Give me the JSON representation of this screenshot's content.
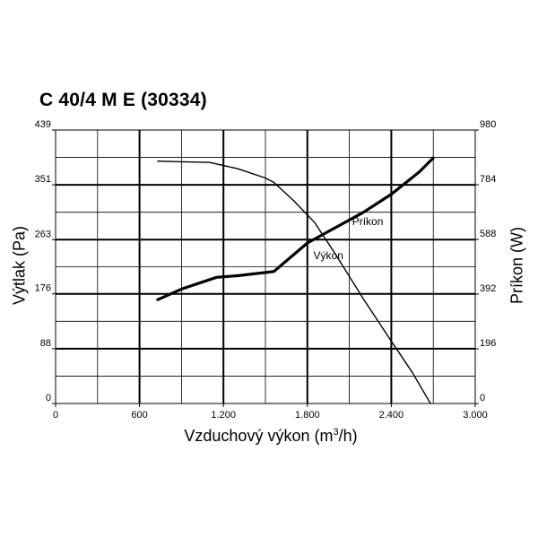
{
  "chart_data": {
    "type": "line",
    "title": "C 40/4 M E (30334)",
    "xlabel_prefix": "Vzduchový výkon (m",
    "xlabel_sup": "3",
    "xlabel_suffix": "/h)",
    "ylabel_left": "Výtlak (Pa)",
    "ylabel_right": "Príkon (W)",
    "xlim": [
      0,
      3000
    ],
    "ylim_left": [
      0,
      439
    ],
    "ylim_right": [
      0,
      980
    ],
    "x_ticks": [
      0,
      600,
      1200,
      1800,
      2400,
      3000
    ],
    "x_tick_labels": [
      "0",
      "600",
      "1.200",
      "1.800",
      "2.400",
      "3.000"
    ],
    "y_ticks_left": [
      0,
      88,
      176,
      263,
      351,
      439
    ],
    "y_tick_labels_left": [
      "0",
      "88",
      "176",
      "263",
      "351",
      "439"
    ],
    "y_ticks_right": [
      0,
      196,
      392,
      588,
      784,
      980
    ],
    "y_tick_labels_right": [
      "0",
      "196",
      "392",
      "588",
      "784",
      "980"
    ],
    "grid": true,
    "series": [
      {
        "name": "Výkon",
        "axis": "left",
        "stroke": "#000000",
        "bold": false,
        "x": [
          730,
          900,
          1100,
          1300,
          1500,
          1560,
          1700,
          1850,
          2000,
          2200,
          2400,
          2550,
          2680
        ],
        "y": [
          389,
          388,
          387,
          377,
          362,
          355,
          326,
          291,
          240,
          168,
          100,
          50,
          0
        ]
      },
      {
        "name": "Príkon",
        "axis": "right",
        "stroke": "#000000",
        "bold": true,
        "x": [
          730,
          900,
          1150,
          1300,
          1560,
          1800,
          2000,
          2200,
          2400,
          2600,
          2700
        ],
        "y": [
          372,
          410,
          452,
          458,
          473,
          575,
          630,
          685,
          750,
          830,
          880
        ]
      }
    ],
    "annotations": [
      {
        "text": "Príkon",
        "series": "Príkon"
      },
      {
        "text": "Výkon",
        "series": "Výkon"
      }
    ]
  }
}
